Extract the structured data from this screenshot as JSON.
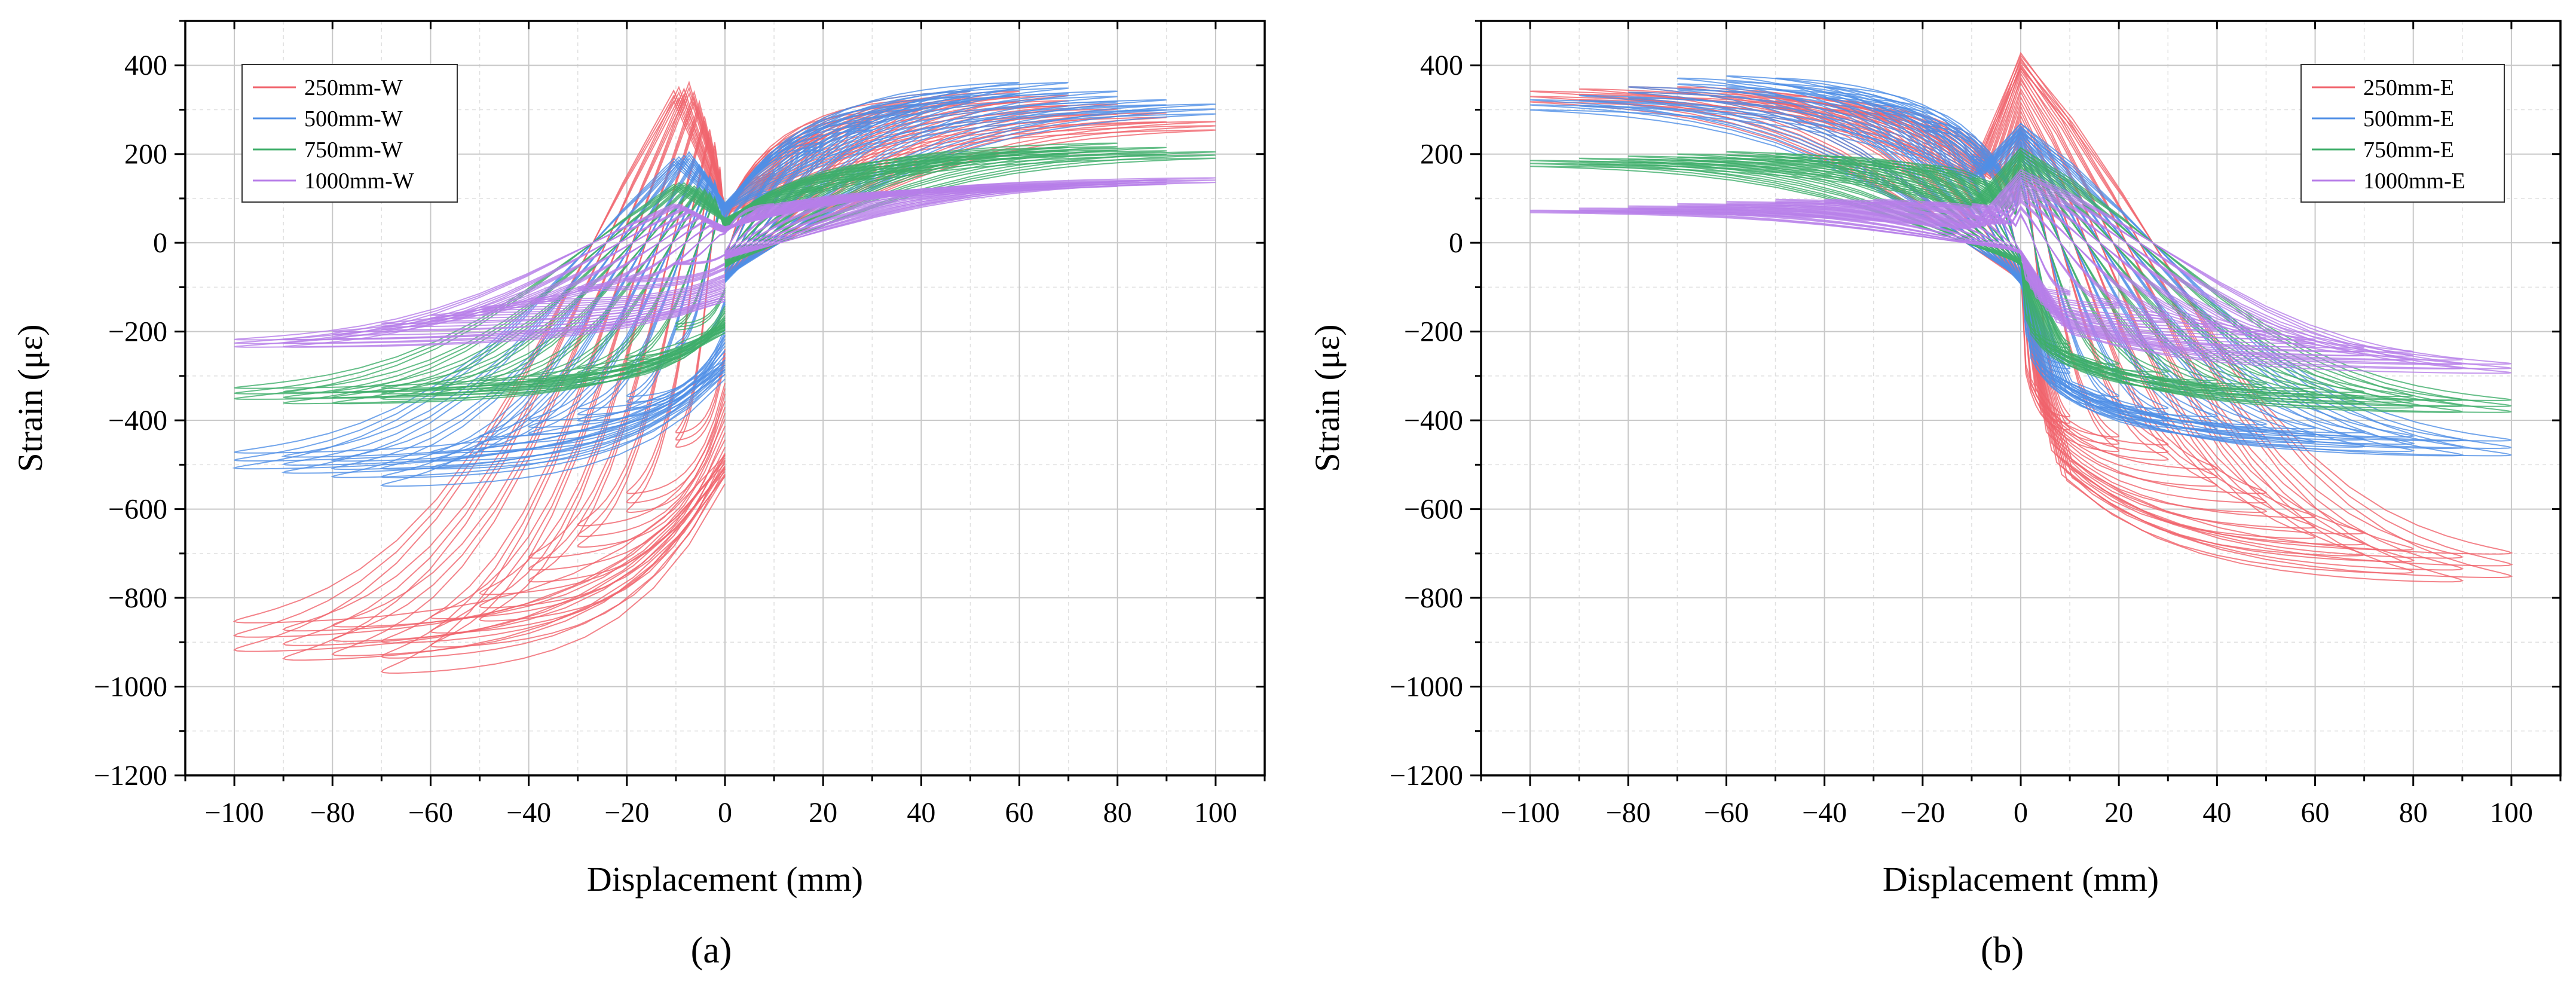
{
  "figure": {
    "panel_a_caption": "(a)",
    "panel_b_caption": "(b)"
  },
  "colors": {
    "red": "#f0636b",
    "blue": "#4f8fe6",
    "green": "#3fae6a",
    "purple": "#b77ee8"
  },
  "chart_data": [
    {
      "id": "a",
      "type": "line",
      "title": "",
      "xlabel": "Displacement (mm)",
      "ylabel": "Strain (με)",
      "xlim": [
        -110,
        110
      ],
      "ylim": [
        -1200,
        500
      ],
      "xticks": [
        -100,
        -80,
        -60,
        -40,
        -20,
        0,
        20,
        40,
        60,
        80,
        100
      ],
      "xtick_labels": [
        "−100",
        "−80",
        "−60",
        "−40",
        "−20",
        "0",
        "20",
        "40",
        "60",
        "80",
        "100"
      ],
      "yticks": [
        400,
        200,
        0,
        -200,
        -400,
        -600,
        -800,
        -1000,
        -1200
      ],
      "ytick_labels": [
        "400",
        "200",
        "0",
        "−200",
        "−400",
        "−600",
        "−800",
        "−1000",
        "−1200"
      ],
      "legend_position": "top-left",
      "series": [
        {
          "name": "250mm-W",
          "color": "#f0636b",
          "amplitudes": [
            10,
            20,
            30,
            40,
            50,
            60,
            70,
            80,
            90,
            100
          ],
          "peak_neg": [
            -470,
            -620,
            -700,
            -780,
            -870,
            -930,
            -990,
            -950,
            -960,
            -940
          ],
          "peak_pos": [
            160,
            250,
            300,
            330,
            350,
            350,
            340,
            320,
            300,
            280
          ]
        },
        {
          "name": "500mm-W",
          "color": "#4f8fe6",
          "amplitudes": [
            10,
            20,
            30,
            40,
            50,
            60,
            70,
            80,
            90,
            100
          ],
          "peak_neg": [
            -250,
            -380,
            -410,
            -440,
            -480,
            -520,
            -560,
            -540,
            -530,
            -520
          ],
          "peak_pos": [
            120,
            230,
            280,
            320,
            350,
            370,
            370,
            350,
            330,
            320
          ]
        },
        {
          "name": "750mm-W",
          "color": "#3fae6a",
          "amplitudes": [
            10,
            20,
            30,
            40,
            50,
            60,
            70,
            80,
            90,
            100
          ],
          "peak_neg": [
            -200,
            -280,
            -310,
            -330,
            -340,
            -350,
            -360,
            -370,
            -370,
            -360
          ],
          "peak_pos": [
            100,
            130,
            160,
            180,
            200,
            210,
            220,
            230,
            220,
            210
          ]
        },
        {
          "name": "1000mm-W",
          "color": "#b77ee8",
          "amplitudes": [
            10,
            20,
            30,
            40,
            50,
            60,
            70,
            80,
            90,
            100
          ],
          "peak_neg": [
            -50,
            -90,
            -110,
            -140,
            -160,
            -180,
            -200,
            -220,
            -240,
            -240
          ],
          "peak_pos": [
            90,
            100,
            110,
            120,
            125,
            130,
            135,
            140,
            145,
            150
          ]
        }
      ]
    },
    {
      "id": "b",
      "type": "line",
      "title": "",
      "xlabel": "Displacement (mm)",
      "ylabel": "Strain (με)",
      "xlim": [
        -110,
        110
      ],
      "ylim": [
        -1200,
        500
      ],
      "xticks": [
        -100,
        -80,
        -60,
        -40,
        -20,
        0,
        20,
        40,
        60,
        80,
        100
      ],
      "xtick_labels": [
        "−100",
        "−80",
        "−60",
        "−40",
        "−20",
        "0",
        "20",
        "40",
        "60",
        "80",
        "100"
      ],
      "yticks": [
        400,
        200,
        0,
        -200,
        -400,
        -600,
        -800,
        -1000,
        -1200
      ],
      "ytick_labels": [
        "400",
        "200",
        "0",
        "−200",
        "−400",
        "−600",
        "−800",
        "−1000",
        "−1200"
      ],
      "legend_position": "top-right",
      "series": [
        {
          "name": "250mm-E",
          "color": "#f0636b",
          "amplitudes": [
            10,
            20,
            30,
            40,
            50,
            60,
            70,
            80,
            90,
            100
          ],
          "peak_neg": [
            -430,
            -480,
            -500,
            -560,
            -620,
            -680,
            -720,
            -760,
            -780,
            -770
          ],
          "peak_pos": [
            220,
            280,
            310,
            330,
            340,
            350,
            360,
            360,
            355,
            350
          ]
        },
        {
          "name": "500mm-E",
          "color": "#4f8fe6",
          "amplitudes": [
            10,
            20,
            30,
            40,
            50,
            60,
            70,
            80,
            90,
            100
          ],
          "peak_neg": [
            -300,
            -380,
            -410,
            -430,
            -450,
            -460,
            -470,
            -480,
            -490,
            -490
          ],
          "peak_pos": [
            200,
            280,
            330,
            360,
            380,
            385,
            380,
            360,
            340,
            330
          ]
        },
        {
          "name": "750mm-E",
          "color": "#3fae6a",
          "amplitudes": [
            10,
            20,
            30,
            40,
            50,
            60,
            70,
            80,
            90,
            100
          ],
          "peak_neg": [
            -250,
            -300,
            -320,
            -340,
            -350,
            -360,
            -370,
            -380,
            -390,
            -390
          ],
          "peak_pos": [
            150,
            180,
            190,
            200,
            205,
            210,
            205,
            200,
            195,
            190
          ]
        },
        {
          "name": "1000mm-E",
          "color": "#b77ee8",
          "amplitudes": [
            10,
            20,
            30,
            40,
            50,
            60,
            70,
            80,
            90,
            100
          ],
          "peak_neg": [
            -120,
            -150,
            -180,
            -200,
            -220,
            -240,
            -260,
            -270,
            -290,
            -300
          ],
          "peak_pos": [
            90,
            95,
            100,
            100,
            100,
            95,
            90,
            85,
            80,
            75
          ]
        }
      ]
    }
  ]
}
